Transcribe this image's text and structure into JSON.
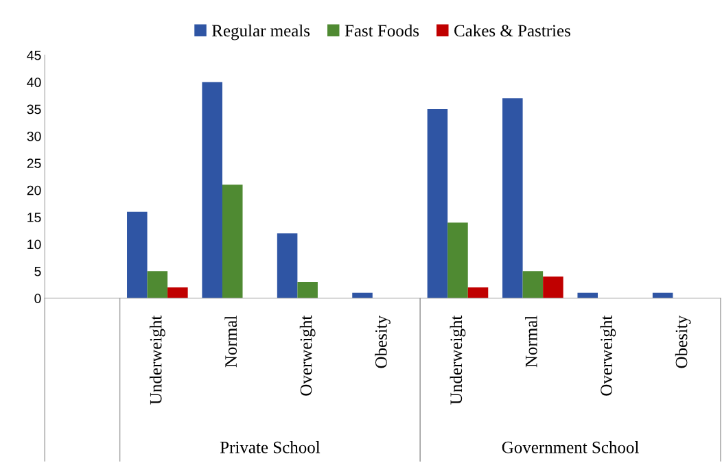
{
  "chart_data": {
    "type": "bar",
    "categories": [
      null,
      "Underweight",
      "Normal",
      "Overweight",
      "Obesity",
      "Underweight",
      "Normal",
      "Overweight",
      "Obesity"
    ],
    "series": [
      {
        "name": "Regular meals",
        "color": "#2f55a4",
        "values": [
          null,
          16,
          40,
          12,
          1,
          35,
          37,
          1,
          1
        ]
      },
      {
        "name": "Fast Foods",
        "color": "#4f8a32",
        "values": [
          null,
          5,
          21,
          3,
          0,
          14,
          5,
          0,
          0
        ]
      },
      {
        "name": "Cakes & Pastries",
        "color": "#c00000",
        "values": [
          null,
          2,
          0,
          0,
          0,
          2,
          4,
          0,
          0
        ]
      }
    ],
    "ylim": [
      0,
      45
    ],
    "yticks": [
      0,
      5,
      10,
      15,
      20,
      25,
      30,
      35,
      40,
      45
    ],
    "annotations": [
      "Private School",
      "Government School"
    ],
    "grid": false,
    "legend": "top"
  }
}
